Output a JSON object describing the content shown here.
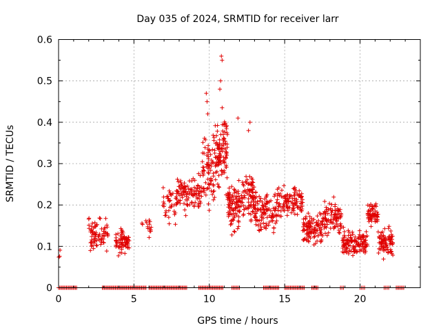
{
  "chart_data": {
    "type": "scatter",
    "title": "Day 035 of 2024, SRMTID for receiver larr",
    "xlabel": "GPS time / hours",
    "ylabel": "SRMTID / TECUs",
    "xlim": [
      0,
      24
    ],
    "ylim": [
      0,
      0.6
    ],
    "grid": true,
    "xticks": [
      0,
      5,
      10,
      15,
      20
    ],
    "xtick_labels": [
      "0",
      "5",
      "10",
      "15",
      "20"
    ],
    "yticks": [
      0,
      0.1,
      0.2,
      0.3,
      0.4,
      0.5,
      0.6
    ],
    "ytick_labels": [
      "0",
      "0.1",
      "0.2",
      "0.3",
      "0.4",
      "0.5",
      "0.6"
    ],
    "marker": "+",
    "color": "#e00000",
    "series": [
      {
        "name": "SRMTID",
        "clusters": [
          {
            "x_start": 0.0,
            "x_end": 0.1,
            "y_center": 0.08,
            "spread": 0.02,
            "n": 3
          },
          {
            "x_start": 2.0,
            "x_end": 2.5,
            "y_center": 0.13,
            "spread": 0.05,
            "n": 40
          },
          {
            "x_start": 2.5,
            "x_end": 3.3,
            "y_center": 0.13,
            "spread": 0.05,
            "n": 35
          },
          {
            "x_start": 3.8,
            "x_end": 4.7,
            "y_center": 0.11,
            "spread": 0.04,
            "n": 70
          },
          {
            "x_start": 5.5,
            "x_end": 6.2,
            "y_center": 0.14,
            "spread": 0.04,
            "n": 15
          },
          {
            "x_start": 6.9,
            "x_end": 7.8,
            "y_center": 0.2,
            "spread": 0.06,
            "n": 35
          },
          {
            "x_start": 7.8,
            "x_end": 9.5,
            "y_center": 0.23,
            "spread": 0.06,
            "n": 110
          },
          {
            "x_start": 9.5,
            "x_end": 10.3,
            "y_center": 0.28,
            "spread": 0.1,
            "n": 70
          },
          {
            "x_start": 10.3,
            "x_end": 11.2,
            "y_center": 0.33,
            "spread": 0.13,
            "n": 110
          },
          {
            "x_start": 11.2,
            "x_end": 12.0,
            "y_center": 0.2,
            "spread": 0.09,
            "n": 90
          },
          {
            "x_start": 12.0,
            "x_end": 13.0,
            "y_center": 0.22,
            "spread": 0.08,
            "n": 90
          },
          {
            "x_start": 13.0,
            "x_end": 14.5,
            "y_center": 0.18,
            "spread": 0.07,
            "n": 110
          },
          {
            "x_start": 14.5,
            "x_end": 16.2,
            "y_center": 0.21,
            "spread": 0.05,
            "n": 110
          },
          {
            "x_start": 16.2,
            "x_end": 17.5,
            "y_center": 0.14,
            "spread": 0.05,
            "n": 100
          },
          {
            "x_start": 17.5,
            "x_end": 18.8,
            "y_center": 0.17,
            "spread": 0.06,
            "n": 90
          },
          {
            "x_start": 18.8,
            "x_end": 20.5,
            "y_center": 0.11,
            "spread": 0.04,
            "n": 130
          },
          {
            "x_start": 20.5,
            "x_end": 21.2,
            "y_center": 0.18,
            "spread": 0.04,
            "n": 60
          },
          {
            "x_start": 21.2,
            "x_end": 22.2,
            "y_center": 0.11,
            "spread": 0.05,
            "n": 80
          }
        ],
        "peak_points": [
          {
            "x": 10.8,
            "y": 0.56
          },
          {
            "x": 10.85,
            "y": 0.55
          },
          {
            "x": 10.75,
            "y": 0.5
          },
          {
            "x": 10.7,
            "y": 0.48
          },
          {
            "x": 9.8,
            "y": 0.47
          },
          {
            "x": 9.85,
            "y": 0.45
          },
          {
            "x": 9.9,
            "y": 0.42
          },
          {
            "x": 11.9,
            "y": 0.41
          },
          {
            "x": 12.7,
            "y": 0.4
          },
          {
            "x": 12.6,
            "y": 0.38
          }
        ],
        "zero_segments": [
          [
            0.0,
            1.2
          ],
          [
            2.9,
            5.8
          ],
          [
            6.0,
            8.5
          ],
          [
            9.3,
            10.9
          ],
          [
            11.5,
            12.0
          ],
          [
            13.6,
            14.6
          ],
          [
            15.0,
            16.3
          ],
          [
            16.8,
            17.2
          ],
          [
            18.7,
            18.9
          ],
          [
            20.0,
            20.3
          ],
          [
            21.6,
            21.9
          ],
          [
            22.4,
            22.9
          ]
        ]
      }
    ]
  }
}
